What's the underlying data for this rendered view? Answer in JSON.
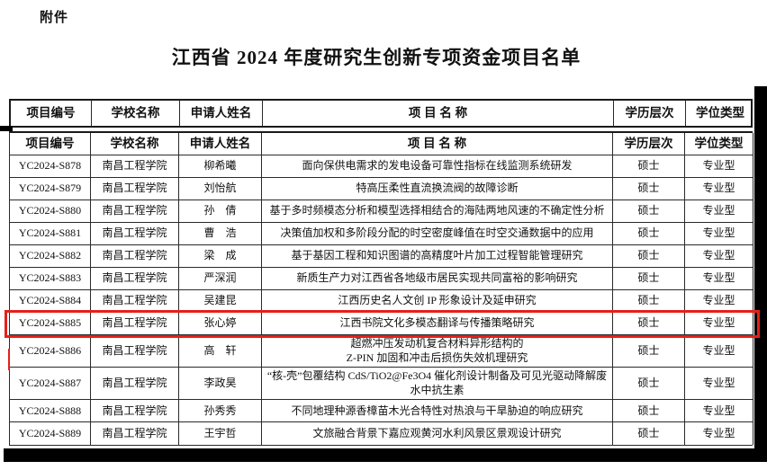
{
  "page": {
    "attachment_label": "附件",
    "title": "江西省 2024 年度研究生创新专项资金项目名单"
  },
  "table": {
    "columns": [
      "项目编号",
      "学校名称",
      "申请人姓名",
      "项 目 名 称",
      "学历层次",
      "学位类型"
    ],
    "highlight_color": "#e32119",
    "rows": [
      {
        "id": "YC2024-S878",
        "school": "南昌工程学院",
        "applicant": "柳希曦",
        "project": "面向保供电需求的发电设备可靠性指标在线监测系统研发",
        "level": "硕士",
        "degree": "专业型",
        "highlighted": false
      },
      {
        "id": "YC2024-S879",
        "school": "南昌工程学院",
        "applicant": "刘怡航",
        "project": "特高压柔性直流换流阀的故障诊断",
        "level": "硕士",
        "degree": "专业型",
        "highlighted": false
      },
      {
        "id": "YC2024-S880",
        "school": "南昌工程学院",
        "applicant": "孙　倩",
        "project": "基于多时频模态分析和模型选择相结合的海陆两地风速的不确定性分析",
        "level": "硕士",
        "degree": "专业型",
        "highlighted": false
      },
      {
        "id": "YC2024-S881",
        "school": "南昌工程学院",
        "applicant": "曹　浩",
        "project": "决策值加权和多阶段分配的时空密度峰值在时空交通数据中的应用",
        "level": "硕士",
        "degree": "专业型",
        "highlighted": false
      },
      {
        "id": "YC2024-S882",
        "school": "南昌工程学院",
        "applicant": "梁　成",
        "project": "基于基因工程和知识图谱的高精度叶片加工过程智能管理研究",
        "level": "硕士",
        "degree": "专业型",
        "highlighted": false
      },
      {
        "id": "YC2024-S883",
        "school": "南昌工程学院",
        "applicant": "严深润",
        "project": "新质生产力对江西省各地级市居民实现共同富裕的影响研究",
        "level": "硕士",
        "degree": "专业型",
        "highlighted": false
      },
      {
        "id": "YC2024-S884",
        "school": "南昌工程学院",
        "applicant": "吴建昆",
        "project": "江西历史名人文创 IP 形象设计及延申研究",
        "level": "硕士",
        "degree": "专业型",
        "highlighted": false
      },
      {
        "id": "YC2024-S885",
        "school": "南昌工程学院",
        "applicant": "张心婷",
        "project": "江西书院文化多模态翻译与传播策略研究",
        "level": "硕士",
        "degree": "专业型",
        "highlighted": true
      },
      {
        "id": "YC2024-S886",
        "school": "南昌工程学院",
        "applicant": "高　轩",
        "project": "超燃冲压发动机复合材料异形结构的\nZ-PIN 加固和冲击后损伤失效机理研究",
        "level": "硕士",
        "degree": "专业型",
        "highlighted": false
      },
      {
        "id": "YC2024-S887",
        "school": "南昌工程学院",
        "applicant": "李政昊",
        "project": "“核-壳”包覆结构 CdS/TiO2@Fe3O4 催化剂设计制备及可见光驱动降解废水中抗生素",
        "level": "硕士",
        "degree": "专业型",
        "highlighted": false
      },
      {
        "id": "YC2024-S888",
        "school": "南昌工程学院",
        "applicant": "孙秀秀",
        "project": "不同地理种源香樟苗木光合特性对热浪与干旱胁迫的响应研究",
        "level": "硕士",
        "degree": "专业型",
        "highlighted": false
      },
      {
        "id": "YC2024-S889",
        "school": "南昌工程学院",
        "applicant": "王宇哲",
        "project": "文旅融合背景下嘉应观黄河水利风景区景观设计研究",
        "level": "硕士",
        "degree": "专业型",
        "highlighted": false
      }
    ]
  }
}
